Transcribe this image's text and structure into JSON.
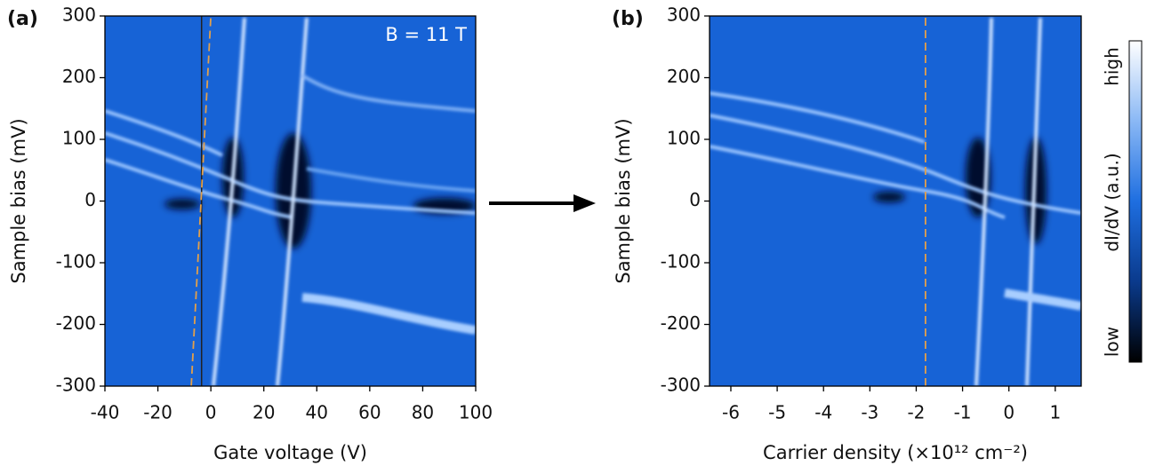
{
  "chart_data": [
    {
      "type": "heatmap",
      "panel_label": "(a)",
      "annotation": "B = 11 T",
      "xlabel": "Gate voltage (V)",
      "ylabel": "Sample bias (mV)",
      "xlim": [
        -40,
        100
      ],
      "xticks": [
        -40,
        -20,
        0,
        20,
        40,
        60,
        80,
        100
      ],
      "ylim": [
        -300,
        300
      ],
      "yticks": [
        -300,
        -200,
        -100,
        0,
        100,
        200,
        300
      ],
      "solid_line": {
        "x": -3.5,
        "color": "#222222"
      },
      "dashed_line": {
        "x": [
          -7.4,
          0
        ],
        "y": [
          -300,
          300
        ],
        "color": "#e3a04a"
      }
    },
    {
      "type": "heatmap",
      "panel_label": "(b)",
      "xlabel": "Carrier density (×10¹² cm⁻²)",
      "ylabel": "Sample bias (mV)",
      "xlim": [
        -6.46,
        1.56
      ],
      "xticks": [
        -6,
        -5,
        -4,
        -3,
        -2,
        -1,
        0,
        1
      ],
      "ylim": [
        -300,
        300
      ],
      "yticks": [
        -300,
        -200,
        -100,
        0,
        100,
        200,
        300
      ],
      "dashed_line": {
        "x": [
          -1.8,
          -1.8
        ],
        "y": [
          -300,
          300
        ],
        "color": "#e3a04a"
      }
    }
  ],
  "colorbar": {
    "label": "dI/dV (a.u.)",
    "high": "high",
    "low": "low",
    "colors": [
      "#000000",
      "#0a3a8c",
      "#1e6ee0",
      "#8ab8f5",
      "#ffffff"
    ]
  }
}
